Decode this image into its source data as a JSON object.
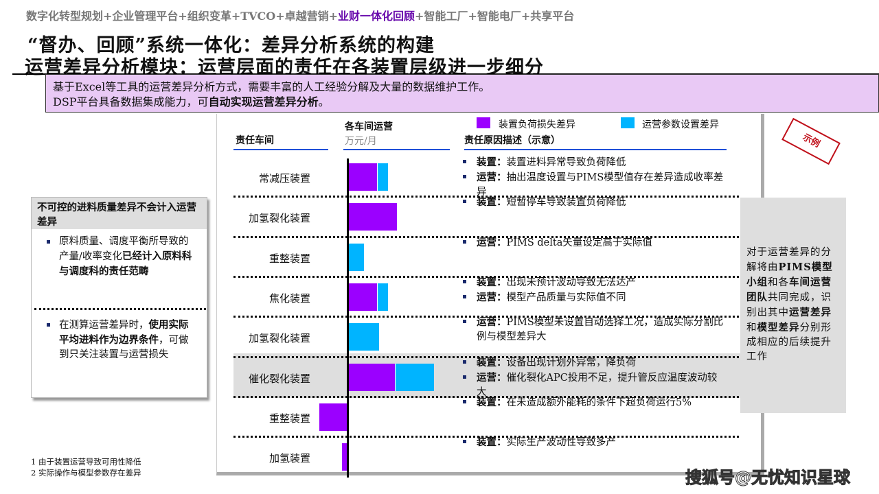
{
  "topnav": {
    "before": "数字化转型规划+企业管理平台+组织变革+TVCO+卓越营销+",
    "highlight": "业财一体化回顾",
    "after": "+智能工厂+智能电厂+共享平台"
  },
  "title": {
    "line1": "“督办、回顾”系统一体化：差异分析系统的构建",
    "line2": "运营差异分析模块：运营层面的责任在各装置层级进一步细分"
  },
  "banner": {
    "line1": "基于Excel等工具的运营差异分析方式，需要丰富的人工经验分解及大量的数据维护工作。",
    "line2_a": "DSP平台具备数据集成能力，可",
    "line2_b": "自动实现运营差异分析",
    "line2_c": "。"
  },
  "table": {
    "col1": "责任车间",
    "col2": "各车间运营",
    "col2_unit": "万元/月",
    "col3": "责任原因描述（示意）"
  },
  "legend": [
    {
      "label": "装置负荷损失差异",
      "color": "#9b00ff"
    },
    {
      "label": "运营参数设置差异",
      "color": "#00b4ff"
    }
  ],
  "chart_data": {
    "type": "bar",
    "stacked": true,
    "orientation": "horizontal",
    "categories": [
      "常减压装置",
      "加氢裂化装置",
      "重整装置",
      "焦化装置",
      "加氢裂化装置",
      "催化裂化装置",
      "重整装置",
      "加氢装置"
    ],
    "series": [
      {
        "name": "装置负荷损失差异",
        "values": [
          42,
          71,
          0,
          42,
          0,
          68,
          -42,
          -9
        ]
      },
      {
        "name": "运营参数设置差异",
        "values": [
          16,
          0,
          23,
          16,
          45,
          57,
          0,
          0
        ]
      }
    ],
    "xlabel": "各车间运营",
    "unit": "万元/月",
    "highlight_category_index": 5
  },
  "rows": [
    {
      "items": [
        {
          "k": "装置：",
          "v": "装置进料异常导致负荷降低"
        },
        {
          "k": "运营：",
          "v": "抽出温度设置与PIMS模型值存在差异造成收率差异"
        }
      ]
    },
    {
      "items": [
        {
          "k": "装置：",
          "v": "短暂停车导致装置负荷降低"
        }
      ]
    },
    {
      "items": [
        {
          "k": "运营：",
          "v": "PIMS delta矢量设定高于实际值"
        }
      ]
    },
    {
      "items": [
        {
          "k": "装置：",
          "v": "出现未预计波动导致无法达产"
        },
        {
          "k": "运营：",
          "v": "模型产品质量与实际值不同"
        }
      ]
    },
    {
      "items": [
        {
          "k": "运营：",
          "v": "PIMS模型未设置自动选择工况，造成实际分割比例与模型差异大"
        }
      ]
    },
    {
      "items": [
        {
          "k": "装置：",
          "v": "设备出现计划外异常，降负荷"
        },
        {
          "k": "运营：",
          "v": "催化裂化APC投用不足，提升管反应温度波动较大"
        }
      ]
    },
    {
      "items": [
        {
          "k": "装置：",
          "v": "在未造成额外能耗的条件下超负荷运行5%"
        }
      ]
    },
    {
      "items": [
        {
          "k": "装置：",
          "v": "实际生产波动性导致多产"
        }
      ]
    }
  ],
  "leftbox": {
    "head": "不可控的进料质量差异不会计入运营差异",
    "item1_a": "原料质量、调度平衡所导致的产量/收率变化",
    "item1_b": "已经计入原料科与调度科的责任范畴",
    "item2_a": "在测算运营差异时，",
    "item2_b": "使用实际平均进料作为边界条件",
    "item2_c": "，可做到只关注装置与运营损失"
  },
  "notes": [
    "1 由于装置运营导致可用性降低",
    "2 实际操作与模型参数存在差异"
  ],
  "stamp": "示例",
  "rightbox": {
    "p1": "对于运营差异的分解将由",
    "b1": "PIMS模型小组",
    "p2": "和各",
    "b2": "车间运营团队",
    "p3": "共同完成，识别出其中",
    "b3": "运营差异",
    "p4": "和",
    "b4": "模型差异",
    "p5": "分别形成相应的后续提升工作"
  },
  "watermark": "搜狐号@无忧知识星球"
}
